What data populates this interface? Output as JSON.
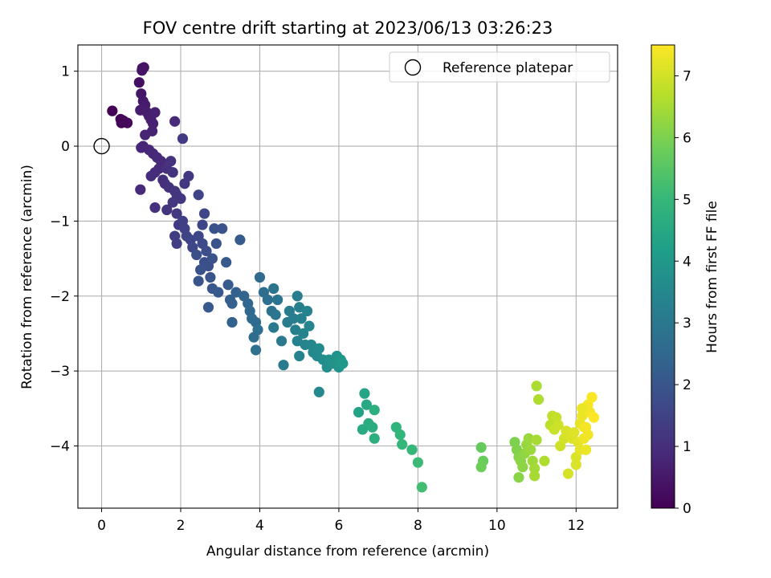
{
  "chart_data": {
    "type": "scatter",
    "title": "FOV centre drift starting at 2023/06/13 03:26:23",
    "xlabel": "Angular distance from reference (arcmin)",
    "ylabel": "Rotation from reference (arcmin)",
    "xlim": [
      -0.6,
      13.05
    ],
    "ylim": [
      -4.83,
      1.35
    ],
    "xticks": [
      0,
      2,
      4,
      6,
      8,
      10,
      12
    ],
    "yticks": [
      -4,
      -3,
      -2,
      -1,
      0,
      1
    ],
    "xtick_labels": [
      "0",
      "2",
      "4",
      "6",
      "8",
      "10",
      "12"
    ],
    "ytick_labels": [
      "−4",
      "−3",
      "−2",
      "−1",
      "0",
      "1"
    ],
    "grid": true,
    "legend": {
      "placement": "top-right",
      "entries": [
        "Reference platepar"
      ]
    },
    "reference_point": {
      "x": 0,
      "y": 0,
      "label": "Reference platepar"
    },
    "colorbar": {
      "label": "Hours from first FF file",
      "range": [
        0,
        7.5
      ],
      "ticks": [
        0,
        1,
        2,
        3,
        4,
        5,
        6,
        7
      ],
      "tick_labels": [
        "0",
        "1",
        "2",
        "3",
        "4",
        "5",
        "6",
        "7"
      ],
      "colormap": "viridis",
      "colormap_stops": [
        "#440154",
        "#482878",
        "#3e4989",
        "#31688e",
        "#26828e",
        "#1f9e89",
        "#35b779",
        "#6ece58",
        "#b5de2b",
        "#fde725"
      ]
    },
    "series": [
      {
        "points": [
          [
            0.27,
            0.47,
            0.05
          ],
          [
            0.48,
            0.36,
            0.07
          ],
          [
            0.5,
            0.31,
            0.1
          ],
          [
            0.55,
            0.34,
            0.12
          ],
          [
            0.65,
            0.31,
            0.15
          ],
          [
            0.95,
            0.85,
            0.3
          ],
          [
            1.03,
            1.04,
            0.35
          ],
          [
            1.07,
            1.05,
            0.38
          ],
          [
            1.02,
            1.01,
            0.4
          ],
          [
            1.0,
            0.7,
            0.45
          ],
          [
            1.05,
            0.6,
            0.5
          ],
          [
            1.1,
            0.55,
            0.55
          ],
          [
            0.98,
            0.48,
            0.58
          ],
          [
            1.15,
            0.45,
            0.6
          ],
          [
            1.2,
            0.4,
            0.62
          ],
          [
            1.25,
            0.35,
            0.65
          ],
          [
            1.3,
            0.3,
            0.68
          ],
          [
            1.35,
            0.45,
            0.7
          ],
          [
            1.28,
            0.2,
            0.72
          ],
          [
            1.1,
            0.15,
            0.75
          ],
          [
            1.05,
            0.0,
            0.78
          ],
          [
            1.0,
            -0.02,
            0.8
          ],
          [
            1.2,
            -0.05,
            0.82
          ],
          [
            1.3,
            -0.1,
            0.85
          ],
          [
            1.4,
            -0.15,
            0.88
          ],
          [
            1.5,
            -0.2,
            0.9
          ],
          [
            1.45,
            -0.3,
            0.92
          ],
          [
            1.35,
            -0.35,
            0.95
          ],
          [
            1.25,
            -0.4,
            0.97
          ],
          [
            1.55,
            -0.45,
            1.0
          ],
          [
            1.6,
            -0.5,
            1.02
          ],
          [
            1.7,
            -0.55,
            1.05
          ],
          [
            1.65,
            -0.3,
            1.07
          ],
          [
            1.75,
            -0.2,
            1.1
          ],
          [
            1.8,
            -0.35,
            1.12
          ],
          [
            1.85,
            -0.6,
            1.15
          ],
          [
            1.9,
            -0.65,
            1.17
          ],
          [
            2.0,
            -0.7,
            1.2
          ],
          [
            2.1,
            -0.5,
            1.22
          ],
          [
            2.2,
            -0.4,
            1.25
          ],
          [
            1.85,
            0.33,
            0.9
          ],
          [
            2.05,
            0.1,
            1.3
          ],
          [
            0.98,
            -0.58,
            0.92
          ],
          [
            1.35,
            -0.82,
            1.05
          ],
          [
            1.65,
            -0.85,
            1.15
          ],
          [
            1.8,
            -0.75,
            1.2
          ],
          [
            1.9,
            -0.9,
            1.25
          ],
          [
            1.95,
            -1.05,
            1.3
          ],
          [
            1.85,
            -1.2,
            1.35
          ],
          [
            1.9,
            -1.3,
            1.4
          ],
          [
            2.05,
            -1.0,
            1.4
          ],
          [
            2.1,
            -1.1,
            1.45
          ],
          [
            2.15,
            -1.2,
            1.5
          ],
          [
            2.25,
            -1.25,
            1.55
          ],
          [
            2.3,
            -1.35,
            1.6
          ],
          [
            2.45,
            -0.65,
            1.55
          ],
          [
            2.55,
            -1.05,
            1.6
          ],
          [
            2.6,
            -0.9,
            1.6
          ],
          [
            2.45,
            -1.2,
            1.65
          ],
          [
            2.55,
            -1.3,
            1.7
          ],
          [
            2.65,
            -1.4,
            1.75
          ],
          [
            2.6,
            -1.55,
            1.8
          ],
          [
            2.7,
            -1.6,
            1.85
          ],
          [
            2.8,
            -1.5,
            1.9
          ],
          [
            2.9,
            -1.3,
            1.95
          ],
          [
            2.85,
            -1.1,
            1.9
          ],
          [
            3.05,
            -1.1,
            1.95
          ],
          [
            2.4,
            -1.45,
            1.85
          ],
          [
            2.5,
            -1.65,
            1.9
          ],
          [
            2.45,
            -1.8,
            1.95
          ],
          [
            2.75,
            -1.75,
            2.0
          ],
          [
            2.8,
            -1.9,
            2.05
          ],
          [
            2.95,
            -1.95,
            2.1
          ],
          [
            2.7,
            -2.15,
            2.1
          ],
          [
            3.15,
            -1.55,
            2.1
          ],
          [
            3.2,
            -1.85,
            2.15
          ],
          [
            3.25,
            -2.05,
            2.2
          ],
          [
            3.3,
            -2.1,
            2.25
          ],
          [
            3.4,
            -1.95,
            2.3
          ],
          [
            3.5,
            -1.25,
            2.15
          ],
          [
            3.3,
            -2.35,
            2.35
          ],
          [
            3.6,
            -2.0,
            2.4
          ],
          [
            3.7,
            -2.1,
            2.45
          ],
          [
            3.75,
            -2.2,
            2.5
          ],
          [
            3.8,
            -2.3,
            2.55
          ],
          [
            3.9,
            -2.35,
            2.6
          ],
          [
            3.85,
            -2.55,
            2.65
          ],
          [
            3.95,
            -2.45,
            2.7
          ],
          [
            3.9,
            -2.72,
            2.75
          ],
          [
            4.0,
            -1.75,
            2.6
          ],
          [
            4.1,
            -1.95,
            2.65
          ],
          [
            4.2,
            -2.05,
            2.7
          ],
          [
            4.3,
            -2.2,
            2.8
          ],
          [
            4.35,
            -1.9,
            2.85
          ],
          [
            4.45,
            -2.05,
            2.9
          ],
          [
            4.4,
            -2.25,
            2.95
          ],
          [
            4.35,
            -2.42,
            3.0
          ],
          [
            4.55,
            -2.6,
            3.05
          ],
          [
            4.6,
            -2.92,
            3.1
          ],
          [
            4.7,
            -2.35,
            3.1
          ],
          [
            4.75,
            -2.2,
            3.15
          ],
          [
            4.85,
            -2.3,
            3.2
          ],
          [
            4.9,
            -2.45,
            3.25
          ],
          [
            4.95,
            -2.6,
            3.3
          ],
          [
            5.0,
            -2.8,
            3.35
          ],
          [
            4.95,
            -2.0,
            3.2
          ],
          [
            5.0,
            -2.15,
            3.25
          ],
          [
            5.05,
            -2.3,
            3.3
          ],
          [
            5.1,
            -2.5,
            3.35
          ],
          [
            5.15,
            -2.65,
            3.4
          ],
          [
            5.2,
            -2.2,
            3.35
          ],
          [
            5.25,
            -2.4,
            3.4
          ],
          [
            5.3,
            -2.65,
            3.45
          ],
          [
            5.35,
            -2.75,
            3.5
          ],
          [
            5.45,
            -2.8,
            3.55
          ],
          [
            5.5,
            -2.7,
            3.6
          ],
          [
            5.6,
            -2.85,
            3.65
          ],
          [
            5.7,
            -2.95,
            3.7
          ],
          [
            5.75,
            -2.85,
            3.75
          ],
          [
            5.85,
            -2.9,
            3.8
          ],
          [
            5.95,
            -2.8,
            3.85
          ],
          [
            6.0,
            -2.95,
            3.9
          ],
          [
            6.05,
            -2.85,
            3.95
          ],
          [
            6.1,
            -2.9,
            4.0
          ],
          [
            5.5,
            -3.28,
            3.5
          ],
          [
            6.5,
            -3.55,
            4.3
          ],
          [
            6.65,
            -3.3,
            4.4
          ],
          [
            6.7,
            -3.45,
            4.5
          ],
          [
            6.6,
            -3.78,
            4.55
          ],
          [
            6.75,
            -3.7,
            4.6
          ],
          [
            6.85,
            -3.75,
            4.65
          ],
          [
            6.9,
            -3.9,
            4.7
          ],
          [
            6.9,
            -3.52,
            4.7
          ],
          [
            7.45,
            -3.75,
            4.85
          ],
          [
            7.55,
            -3.85,
            4.9
          ],
          [
            7.6,
            -3.98,
            4.95
          ],
          [
            7.85,
            -4.05,
            5.0
          ],
          [
            8.0,
            -4.22,
            5.1
          ],
          [
            8.1,
            -4.55,
            5.2
          ],
          [
            9.6,
            -4.02,
            5.7
          ],
          [
            9.65,
            -4.2,
            5.75
          ],
          [
            9.6,
            -4.28,
            5.8
          ],
          [
            10.45,
            -3.95,
            6.0
          ],
          [
            10.5,
            -4.05,
            6.05
          ],
          [
            10.55,
            -4.15,
            6.1
          ],
          [
            10.6,
            -4.2,
            6.15
          ],
          [
            10.65,
            -4.28,
            6.2
          ],
          [
            10.7,
            -4.1,
            6.25
          ],
          [
            10.75,
            -3.98,
            6.3
          ],
          [
            10.8,
            -3.9,
            6.35
          ],
          [
            10.55,
            -4.42,
            6.15
          ],
          [
            10.85,
            -4.05,
            6.35
          ],
          [
            10.9,
            -4.2,
            6.4
          ],
          [
            10.95,
            -4.3,
            6.45
          ],
          [
            10.95,
            -4.4,
            6.5
          ],
          [
            11.0,
            -3.92,
            6.5
          ],
          [
            11.0,
            -3.2,
            6.55
          ],
          [
            11.05,
            -3.38,
            6.6
          ],
          [
            11.2,
            -4.2,
            6.6
          ],
          [
            11.35,
            -3.72,
            6.75
          ],
          [
            11.4,
            -3.6,
            6.8
          ],
          [
            11.5,
            -3.62,
            6.85
          ],
          [
            11.45,
            -3.78,
            6.9
          ],
          [
            11.55,
            -3.72,
            6.95
          ],
          [
            11.6,
            -4.0,
            6.95
          ],
          [
            11.7,
            -3.9,
            7.0
          ],
          [
            11.75,
            -3.8,
            7.05
          ],
          [
            11.8,
            -3.85,
            7.1
          ],
          [
            11.8,
            -4.37,
            7.05
          ],
          [
            11.9,
            -3.9,
            7.1
          ],
          [
            11.95,
            -3.82,
            7.15
          ],
          [
            12.0,
            -4.15,
            7.1
          ],
          [
            12.0,
            -4.25,
            7.1
          ],
          [
            12.05,
            -3.95,
            7.2
          ],
          [
            12.1,
            -4.05,
            7.2
          ],
          [
            12.1,
            -3.7,
            7.25
          ],
          [
            12.15,
            -3.6,
            7.3
          ],
          [
            12.2,
            -3.75,
            7.35
          ],
          [
            12.2,
            -3.9,
            7.3
          ],
          [
            12.25,
            -4.05,
            7.3
          ],
          [
            12.3,
            -3.85,
            7.35
          ],
          [
            12.3,
            -3.45,
            7.4
          ],
          [
            12.35,
            -3.55,
            7.4
          ],
          [
            12.4,
            -3.35,
            7.45
          ],
          [
            12.45,
            -3.62,
            7.5
          ],
          [
            12.25,
            -3.75,
            7.4
          ],
          [
            12.15,
            -3.5,
            7.3
          ]
        ]
      }
    ]
  }
}
